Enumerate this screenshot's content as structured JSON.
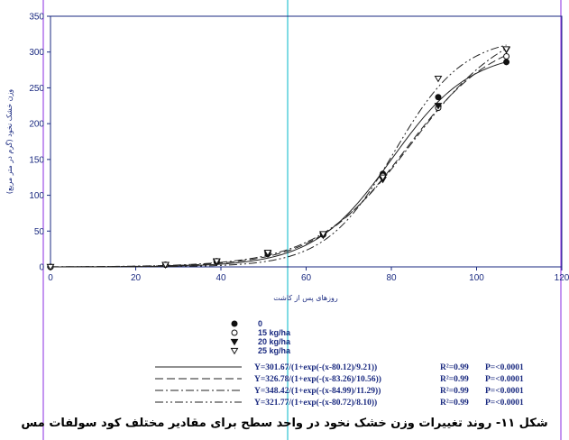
{
  "chart_data": {
    "type": "scatter",
    "xlabel": "روزهای پس از کاشت",
    "ylabel": "وزن خشک نخود (گرم در متر مربع)",
    "xlim": [
      0,
      120
    ],
    "ylim": [
      0,
      350
    ],
    "xticks": [
      "0",
      "20",
      "40",
      "60",
      "80",
      "100",
      "120"
    ],
    "yticks": [
      "0",
      "50",
      "100",
      "150",
      "200",
      "250",
      "300",
      "350"
    ],
    "grid": false,
    "legend_position": "below-plot",
    "series": [
      {
        "name": "0",
        "marker": "circle-filled",
        "x": [
          0,
          27,
          39,
          51,
          64,
          78,
          91,
          107
        ],
        "y": [
          0,
          3,
          7,
          18,
          45,
          130,
          237,
          286
        ],
        "curve": {
          "a": 301.67,
          "x0": 80.12,
          "b": 9.21,
          "style": "solid"
        }
      },
      {
        "name": "15 kg/ha",
        "marker": "circle-open",
        "x": [
          0,
          27,
          39,
          51,
          64,
          78,
          91,
          107
        ],
        "y": [
          0,
          3,
          8,
          19,
          45,
          127,
          222,
          294
        ],
        "curve": {
          "a": 326.78,
          "x0": 83.26,
          "b": 10.56,
          "style": "longdash"
        }
      },
      {
        "name": "20 kg/ha",
        "marker": "triangle-down-filled",
        "x": [
          0,
          27,
          39,
          51,
          64,
          78,
          91,
          107
        ],
        "y": [
          0,
          3,
          7,
          18,
          44,
          122,
          225,
          303
        ],
        "curve": {
          "a": 348.42,
          "x0": 84.99,
          "b": 11.29,
          "style": "dashdot"
        }
      },
      {
        "name": "25 kg/ha",
        "marker": "triangle-down-open",
        "x": [
          0,
          27,
          39,
          51,
          64,
          78,
          91,
          107
        ],
        "y": [
          0,
          3,
          8,
          20,
          46,
          125,
          263,
          304
        ],
        "curve": {
          "a": 321.77,
          "x0": 80.72,
          "b": 8.1,
          "style": "dashdotdot"
        }
      }
    ],
    "equations": [
      {
        "formula": "Y=301.67/(1+exp(-(x-80.12)/9.21))",
        "r2": "R²=0.99",
        "p": "P=<0.0001"
      },
      {
        "formula": "Y=326.78/(1+exp(-(x-83.26)/10.56))",
        "r2": "R²=0.99",
        "p": "P=<0.0001"
      },
      {
        "formula": "Y=348.42/(1+exp(-(x-84.99)/11.29))",
        "r2": "R²=0.99",
        "p": "P=<0.0001"
      },
      {
        "formula": "Y=321.77/(1+exp(-(x-80.72)/8.10))",
        "r2": "R²=0.99",
        "p": "P=<0.0001"
      }
    ],
    "caption": "شکل ۱۱- روند تغییرات وزن خشک نخود در واحد سطح برای مقادیر مختلف کود سولفات مس"
  },
  "colors": {
    "axis": "#1a2a80",
    "marker": "#111111",
    "guide_purple": "#8a2be2",
    "guide_cyan": "#00b7c8"
  }
}
